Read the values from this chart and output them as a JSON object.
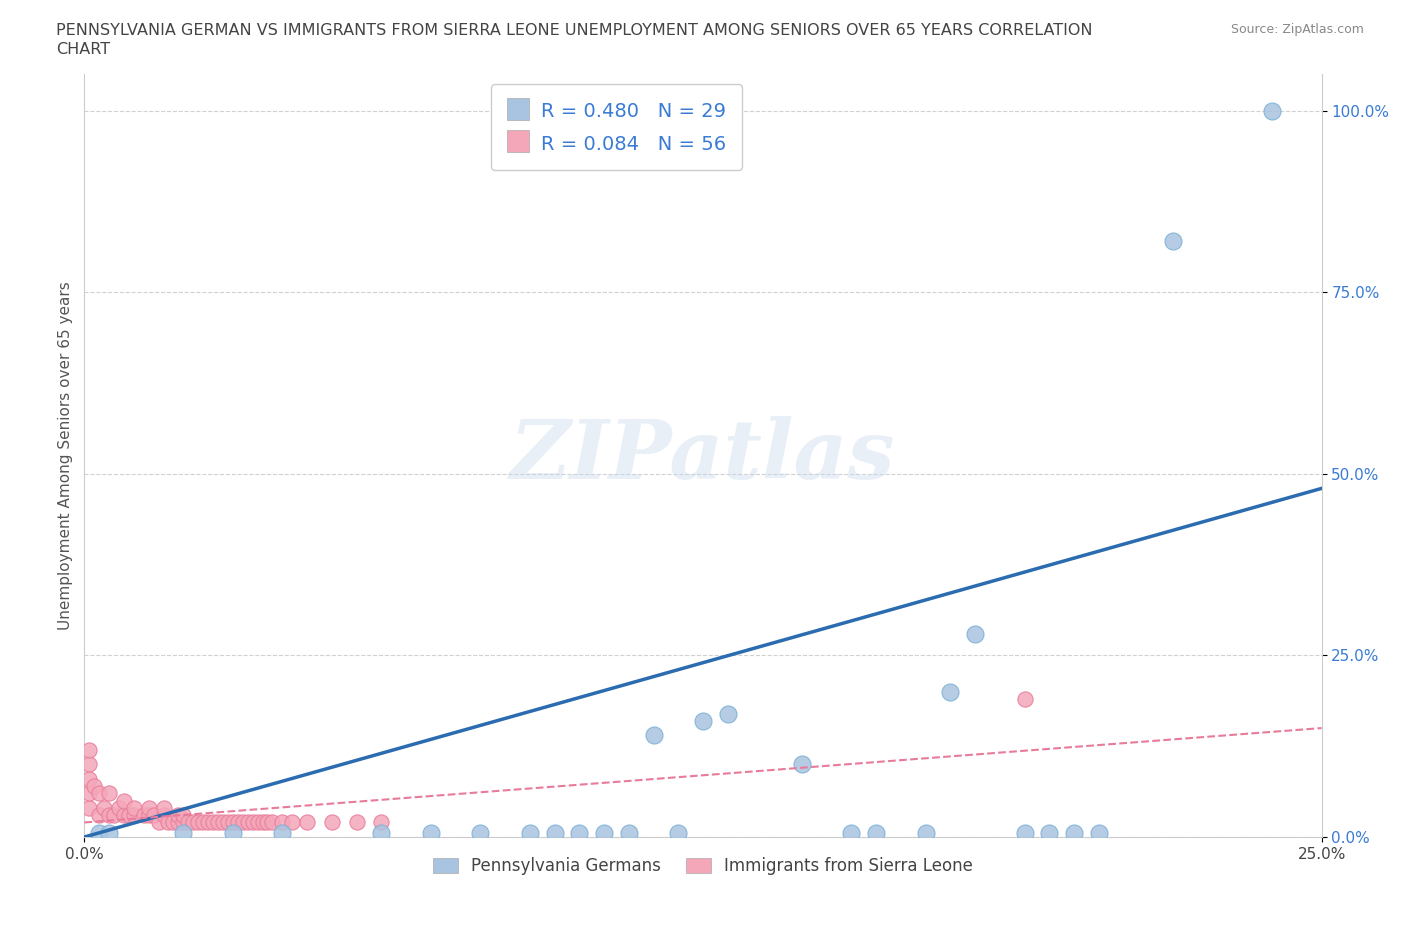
{
  "title_line1": "PENNSYLVANIA GERMAN VS IMMIGRANTS FROM SIERRA LEONE UNEMPLOYMENT AMONG SENIORS OVER 65 YEARS CORRELATION",
  "title_line2": "CHART",
  "source_text": "Source: ZipAtlas.com",
  "ylabel": "Unemployment Among Seniors over 65 years",
  "watermark": "ZIPatlas",
  "xlim": [
    0.0,
    0.25
  ],
  "ylim": [
    0.0,
    1.05
  ],
  "ytick_positions": [
    0.0,
    0.25,
    0.5,
    0.75,
    1.0
  ],
  "xtick_positions": [
    0.0,
    0.25
  ],
  "legend_entry1": "R = 0.480   N = 29",
  "legend_entry2": "R = 0.084   N = 56",
  "legend_label1": "Pennsylvania Germans",
  "legend_label2": "Immigrants from Sierra Leone",
  "color_blue": "#a8c4e0",
  "color_pink": "#f4a7b9",
  "line_blue": "#2b6cb0",
  "line_pink": "#e87a9a",
  "title_color": "#555555",
  "source_color": "#888888",
  "legend_text_color": "#3a7bd5",
  "background_color": "#ffffff",
  "grid_color": "#cccccc",
  "blue_scatter_x": [
    0.003,
    0.005,
    0.02,
    0.03,
    0.04,
    0.06,
    0.07,
    0.08,
    0.09,
    0.095,
    0.1,
    0.105,
    0.11,
    0.115,
    0.12,
    0.125,
    0.13,
    0.145,
    0.155,
    0.16,
    0.17,
    0.175,
    0.18,
    0.19,
    0.195,
    0.2,
    0.205,
    0.22,
    0.24
  ],
  "blue_scatter_y": [
    0.005,
    0.005,
    0.005,
    0.005,
    0.005,
    0.005,
    0.005,
    0.005,
    0.005,
    0.005,
    0.005,
    0.005,
    0.005,
    0.14,
    0.005,
    0.16,
    0.17,
    0.1,
    0.005,
    0.005,
    0.005,
    0.2,
    0.28,
    0.005,
    0.005,
    0.005,
    0.005,
    0.82,
    1.0
  ],
  "pink_scatter_x": [
    0.001,
    0.001,
    0.001,
    0.001,
    0.001,
    0.002,
    0.003,
    0.003,
    0.004,
    0.005,
    0.005,
    0.006,
    0.007,
    0.008,
    0.008,
    0.009,
    0.01,
    0.01,
    0.012,
    0.013,
    0.013,
    0.014,
    0.015,
    0.016,
    0.016,
    0.017,
    0.018,
    0.019,
    0.019,
    0.02,
    0.02,
    0.021,
    0.022,
    0.023,
    0.024,
    0.025,
    0.026,
    0.027,
    0.028,
    0.029,
    0.03,
    0.031,
    0.032,
    0.033,
    0.034,
    0.035,
    0.036,
    0.037,
    0.038,
    0.04,
    0.042,
    0.045,
    0.05,
    0.055,
    0.06,
    0.19
  ],
  "pink_scatter_y": [
    0.04,
    0.06,
    0.08,
    0.1,
    0.12,
    0.07,
    0.03,
    0.06,
    0.04,
    0.03,
    0.06,
    0.03,
    0.04,
    0.03,
    0.05,
    0.03,
    0.03,
    0.04,
    0.03,
    0.03,
    0.04,
    0.03,
    0.02,
    0.03,
    0.04,
    0.02,
    0.02,
    0.02,
    0.03,
    0.02,
    0.03,
    0.02,
    0.02,
    0.02,
    0.02,
    0.02,
    0.02,
    0.02,
    0.02,
    0.02,
    0.02,
    0.02,
    0.02,
    0.02,
    0.02,
    0.02,
    0.02,
    0.02,
    0.02,
    0.02,
    0.02,
    0.02,
    0.02,
    0.02,
    0.02,
    0.19
  ],
  "blue_trend_x": [
    0.0,
    0.25
  ],
  "blue_trend_y": [
    0.0,
    0.48
  ],
  "pink_trend_x": [
    0.0,
    0.25
  ],
  "pink_trend_y": [
    0.02,
    0.15
  ]
}
